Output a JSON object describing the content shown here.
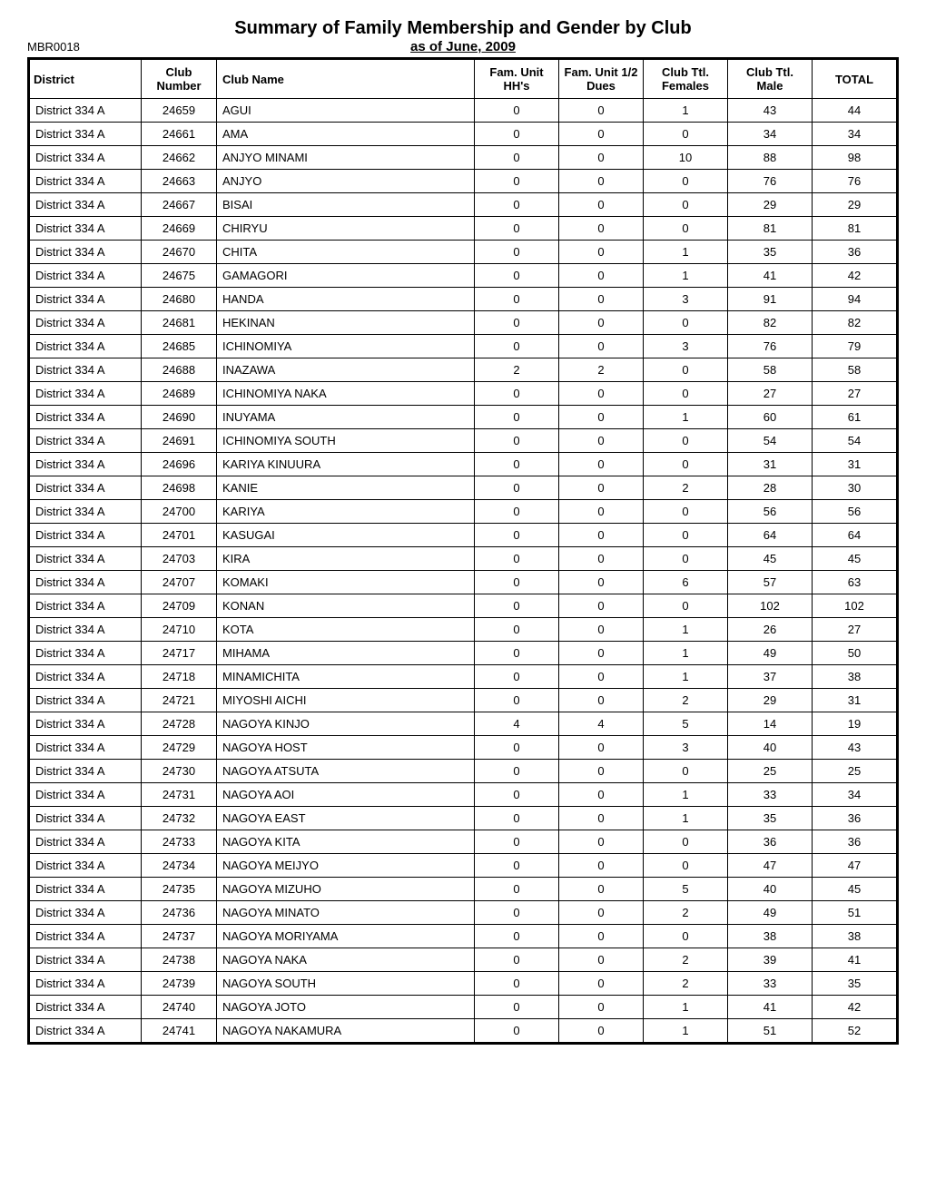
{
  "report_id": "MBR0018",
  "title": "Summary of Family Membership and Gender by Club",
  "subtitle": "as of June, 2009",
  "headers": {
    "district": "District",
    "club_number": "Club Number",
    "club_name": "Club Name",
    "fam_unit_hh": "Fam. Unit HH's",
    "fam_unit_half": "Fam. Unit 1/2 Dues",
    "club_ttl_females": "Club Ttl. Females",
    "club_ttl_male": "Club Ttl. Male",
    "total": "TOTAL"
  },
  "rows": [
    {
      "district": "District 334 A",
      "club_number": "24659",
      "club_name": "AGUI",
      "hh": "0",
      "half": "0",
      "females": "1",
      "male": "43",
      "total": "44"
    },
    {
      "district": "District 334 A",
      "club_number": "24661",
      "club_name": "AMA",
      "hh": "0",
      "half": "0",
      "females": "0",
      "male": "34",
      "total": "34"
    },
    {
      "district": "District 334 A",
      "club_number": "24662",
      "club_name": "ANJYO MINAMI",
      "hh": "0",
      "half": "0",
      "females": "10",
      "male": "88",
      "total": "98"
    },
    {
      "district": "District 334 A",
      "club_number": "24663",
      "club_name": "ANJYO",
      "hh": "0",
      "half": "0",
      "females": "0",
      "male": "76",
      "total": "76"
    },
    {
      "district": "District 334 A",
      "club_number": "24667",
      "club_name": "BISAI",
      "hh": "0",
      "half": "0",
      "females": "0",
      "male": "29",
      "total": "29"
    },
    {
      "district": "District 334 A",
      "club_number": "24669",
      "club_name": "CHIRYU",
      "hh": "0",
      "half": "0",
      "females": "0",
      "male": "81",
      "total": "81"
    },
    {
      "district": "District 334 A",
      "club_number": "24670",
      "club_name": "CHITA",
      "hh": "0",
      "half": "0",
      "females": "1",
      "male": "35",
      "total": "36"
    },
    {
      "district": "District 334 A",
      "club_number": "24675",
      "club_name": "GAMAGORI",
      "hh": "0",
      "half": "0",
      "females": "1",
      "male": "41",
      "total": "42"
    },
    {
      "district": "District 334 A",
      "club_number": "24680",
      "club_name": "HANDA",
      "hh": "0",
      "half": "0",
      "females": "3",
      "male": "91",
      "total": "94"
    },
    {
      "district": "District 334 A",
      "club_number": "24681",
      "club_name": "HEKINAN",
      "hh": "0",
      "half": "0",
      "females": "0",
      "male": "82",
      "total": "82"
    },
    {
      "district": "District 334 A",
      "club_number": "24685",
      "club_name": "ICHINOMIYA",
      "hh": "0",
      "half": "0",
      "females": "3",
      "male": "76",
      "total": "79"
    },
    {
      "district": "District 334 A",
      "club_number": "24688",
      "club_name": "INAZAWA",
      "hh": "2",
      "half": "2",
      "females": "0",
      "male": "58",
      "total": "58"
    },
    {
      "district": "District 334 A",
      "club_number": "24689",
      "club_name": "ICHINOMIYA NAKA",
      "hh": "0",
      "half": "0",
      "females": "0",
      "male": "27",
      "total": "27"
    },
    {
      "district": "District 334 A",
      "club_number": "24690",
      "club_name": "INUYAMA",
      "hh": "0",
      "half": "0",
      "females": "1",
      "male": "60",
      "total": "61"
    },
    {
      "district": "District 334 A",
      "club_number": "24691",
      "club_name": "ICHINOMIYA SOUTH",
      "hh": "0",
      "half": "0",
      "females": "0",
      "male": "54",
      "total": "54"
    },
    {
      "district": "District 334 A",
      "club_number": "24696",
      "club_name": "KARIYA KINUURA",
      "hh": "0",
      "half": "0",
      "females": "0",
      "male": "31",
      "total": "31"
    },
    {
      "district": "District 334 A",
      "club_number": "24698",
      "club_name": "KANIE",
      "hh": "0",
      "half": "0",
      "females": "2",
      "male": "28",
      "total": "30"
    },
    {
      "district": "District 334 A",
      "club_number": "24700",
      "club_name": "KARIYA",
      "hh": "0",
      "half": "0",
      "females": "0",
      "male": "56",
      "total": "56"
    },
    {
      "district": "District 334 A",
      "club_number": "24701",
      "club_name": "KASUGAI",
      "hh": "0",
      "half": "0",
      "females": "0",
      "male": "64",
      "total": "64"
    },
    {
      "district": "District 334 A",
      "club_number": "24703",
      "club_name": "KIRA",
      "hh": "0",
      "half": "0",
      "females": "0",
      "male": "45",
      "total": "45"
    },
    {
      "district": "District 334 A",
      "club_number": "24707",
      "club_name": "KOMAKI",
      "hh": "0",
      "half": "0",
      "females": "6",
      "male": "57",
      "total": "63"
    },
    {
      "district": "District 334 A",
      "club_number": "24709",
      "club_name": "KONAN",
      "hh": "0",
      "half": "0",
      "females": "0",
      "male": "102",
      "total": "102"
    },
    {
      "district": "District 334 A",
      "club_number": "24710",
      "club_name": "KOTA",
      "hh": "0",
      "half": "0",
      "females": "1",
      "male": "26",
      "total": "27"
    },
    {
      "district": "District 334 A",
      "club_number": "24717",
      "club_name": "MIHAMA",
      "hh": "0",
      "half": "0",
      "females": "1",
      "male": "49",
      "total": "50"
    },
    {
      "district": "District 334 A",
      "club_number": "24718",
      "club_name": "MINAMICHITA",
      "hh": "0",
      "half": "0",
      "females": "1",
      "male": "37",
      "total": "38"
    },
    {
      "district": "District 334 A",
      "club_number": "24721",
      "club_name": "MIYOSHI AICHI",
      "hh": "0",
      "half": "0",
      "females": "2",
      "male": "29",
      "total": "31"
    },
    {
      "district": "District 334 A",
      "club_number": "24728",
      "club_name": "NAGOYA KINJO",
      "hh": "4",
      "half": "4",
      "females": "5",
      "male": "14",
      "total": "19"
    },
    {
      "district": "District 334 A",
      "club_number": "24729",
      "club_name": "NAGOYA HOST",
      "hh": "0",
      "half": "0",
      "females": "3",
      "male": "40",
      "total": "43"
    },
    {
      "district": "District 334 A",
      "club_number": "24730",
      "club_name": "NAGOYA ATSUTA",
      "hh": "0",
      "half": "0",
      "females": "0",
      "male": "25",
      "total": "25"
    },
    {
      "district": "District 334 A",
      "club_number": "24731",
      "club_name": "NAGOYA AOI",
      "hh": "0",
      "half": "0",
      "females": "1",
      "male": "33",
      "total": "34"
    },
    {
      "district": "District 334 A",
      "club_number": "24732",
      "club_name": "NAGOYA EAST",
      "hh": "0",
      "half": "0",
      "females": "1",
      "male": "35",
      "total": "36"
    },
    {
      "district": "District 334 A",
      "club_number": "24733",
      "club_name": "NAGOYA KITA",
      "hh": "0",
      "half": "0",
      "females": "0",
      "male": "36",
      "total": "36"
    },
    {
      "district": "District 334 A",
      "club_number": "24734",
      "club_name": "NAGOYA MEIJYO",
      "hh": "0",
      "half": "0",
      "females": "0",
      "male": "47",
      "total": "47"
    },
    {
      "district": "District 334 A",
      "club_number": "24735",
      "club_name": "NAGOYA MIZUHO",
      "hh": "0",
      "half": "0",
      "females": "5",
      "male": "40",
      "total": "45"
    },
    {
      "district": "District 334 A",
      "club_number": "24736",
      "club_name": "NAGOYA MINATO",
      "hh": "0",
      "half": "0",
      "females": "2",
      "male": "49",
      "total": "51"
    },
    {
      "district": "District 334 A",
      "club_number": "24737",
      "club_name": "NAGOYA MORIYAMA",
      "hh": "0",
      "half": "0",
      "females": "0",
      "male": "38",
      "total": "38"
    },
    {
      "district": "District 334 A",
      "club_number": "24738",
      "club_name": "NAGOYA NAKA",
      "hh": "0",
      "half": "0",
      "females": "2",
      "male": "39",
      "total": "41"
    },
    {
      "district": "District 334 A",
      "club_number": "24739",
      "club_name": "NAGOYA SOUTH",
      "hh": "0",
      "half": "0",
      "females": "2",
      "male": "33",
      "total": "35"
    },
    {
      "district": "District 334 A",
      "club_number": "24740",
      "club_name": "NAGOYA JOTO",
      "hh": "0",
      "half": "0",
      "females": "1",
      "male": "41",
      "total": "42"
    },
    {
      "district": "District 334 A",
      "club_number": "24741",
      "club_name": "NAGOYA NAKAMURA",
      "hh": "0",
      "half": "0",
      "females": "1",
      "male": "51",
      "total": "52"
    }
  ]
}
